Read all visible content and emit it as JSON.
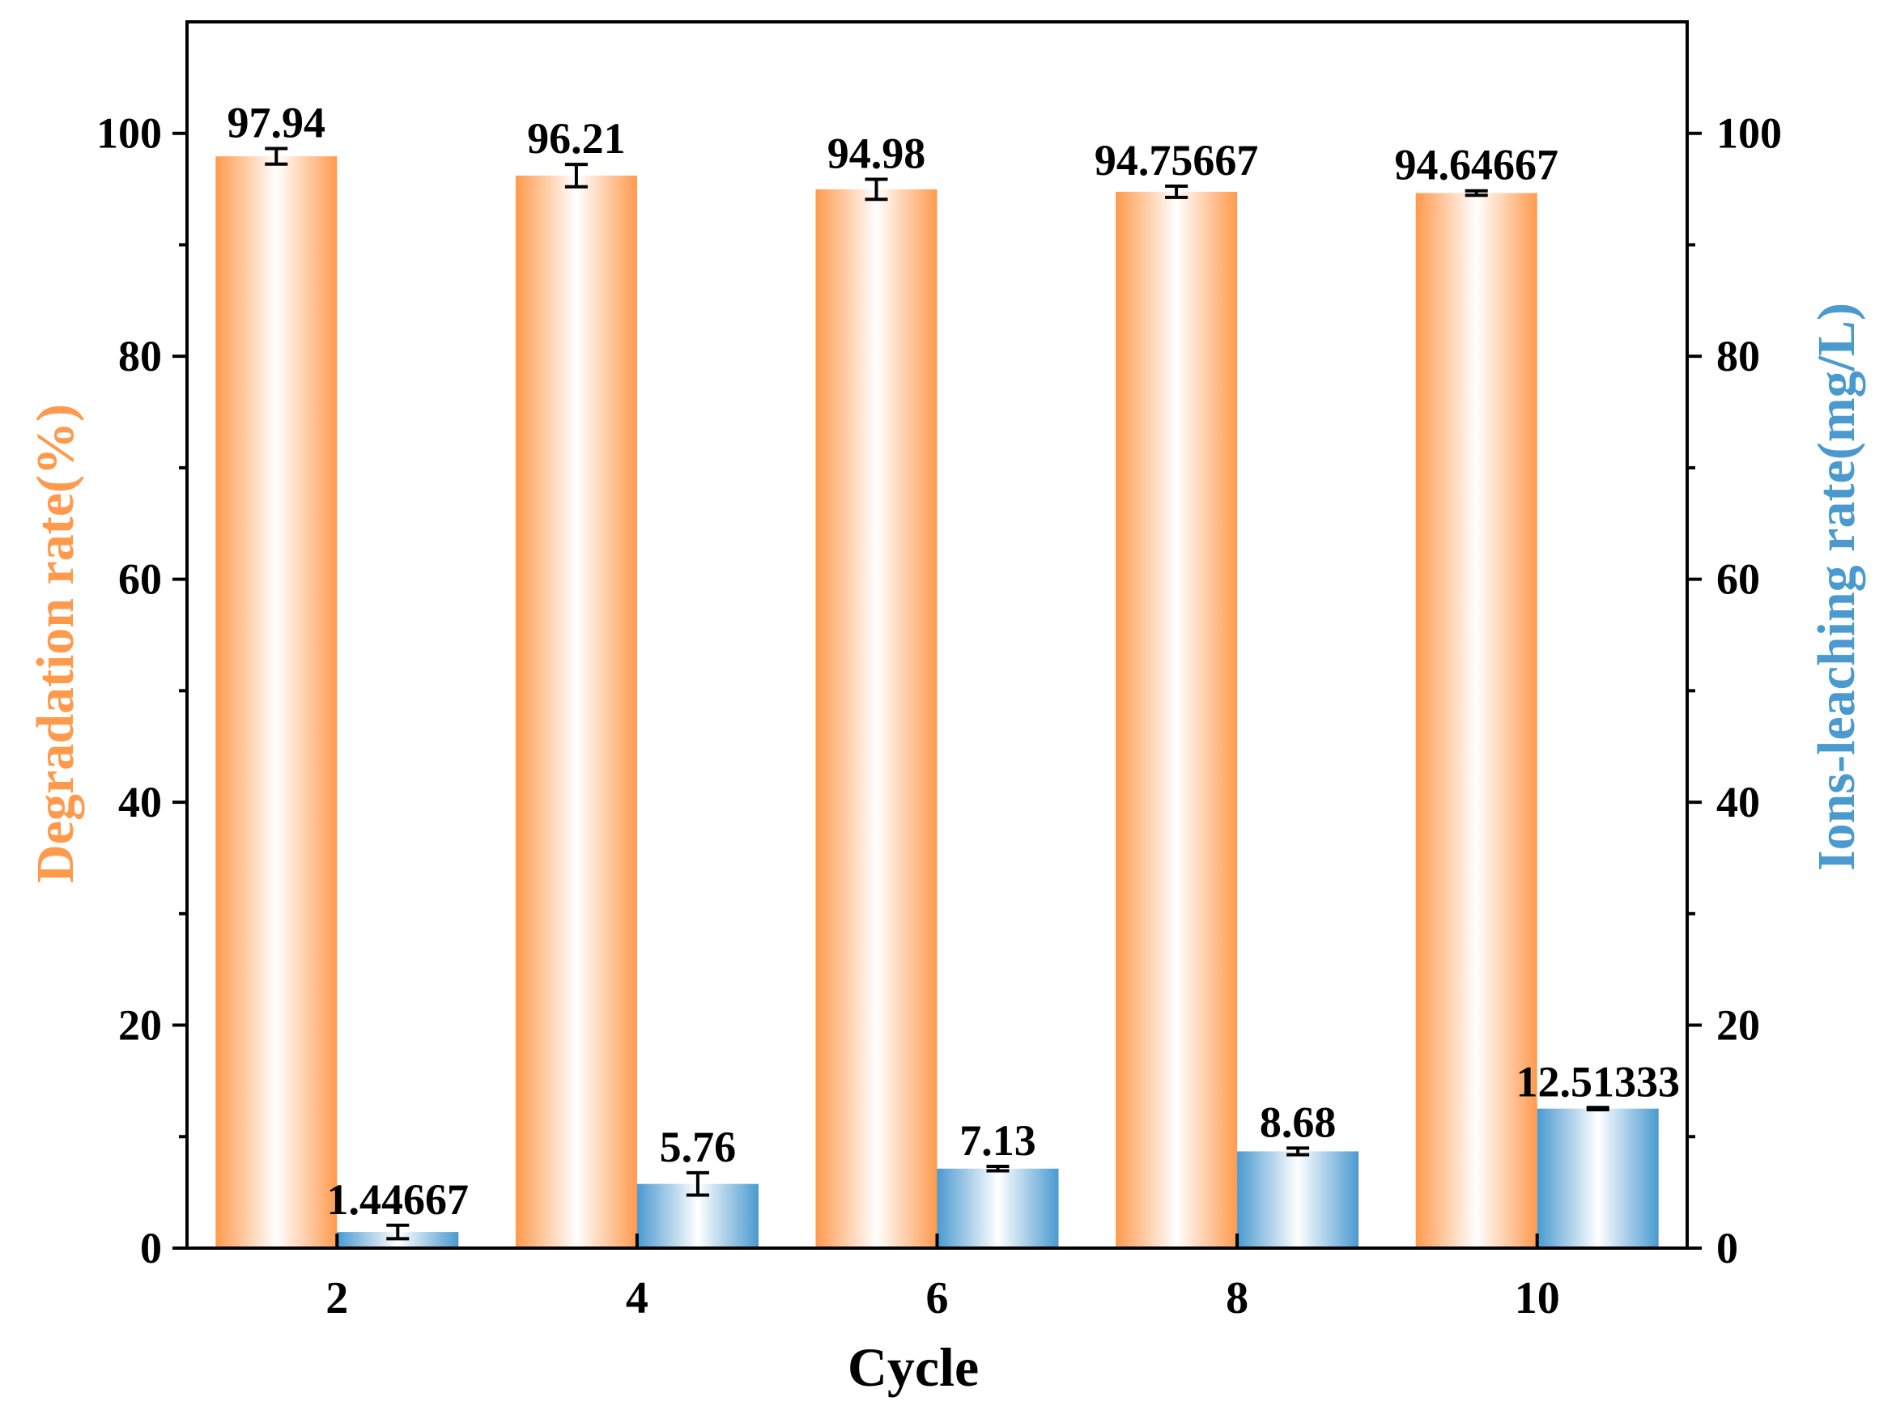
{
  "chart_data": {
    "type": "bar",
    "xlabel": "Cycle",
    "ylabel_left": "Degradation rate(%)",
    "ylabel_right": "Ions-leaching rate(mg/L)",
    "categories": [
      "2",
      "4",
      "6",
      "8",
      "10"
    ],
    "ylim": [
      0,
      110
    ],
    "yticks": [
      0,
      20,
      40,
      60,
      80,
      100
    ],
    "y2lim": [
      0,
      110
    ],
    "y2ticks": [
      0,
      20,
      40,
      60,
      80,
      100
    ],
    "series": [
      {
        "name": "Degradation rate",
        "axis": "left",
        "color": "#FF9A4D",
        "values": [
          97.94,
          96.21,
          94.98,
          94.75667,
          94.64667
        ],
        "labels": [
          "97.94",
          "96.21",
          "94.98",
          "94.75667",
          "94.64667"
        ],
        "errors": [
          0.7,
          1.0,
          0.9,
          0.5,
          0.2
        ]
      },
      {
        "name": "Ions-leaching rate",
        "axis": "right",
        "color": "#4A9AD0",
        "values": [
          1.44667,
          5.76,
          7.13,
          8.68,
          12.51333
        ],
        "labels": [
          "1.44667",
          "5.76",
          "7.13",
          "8.68",
          "12.51333"
        ],
        "errors": [
          0.6,
          1.0,
          0.2,
          0.3,
          0.1
        ]
      }
    ]
  }
}
